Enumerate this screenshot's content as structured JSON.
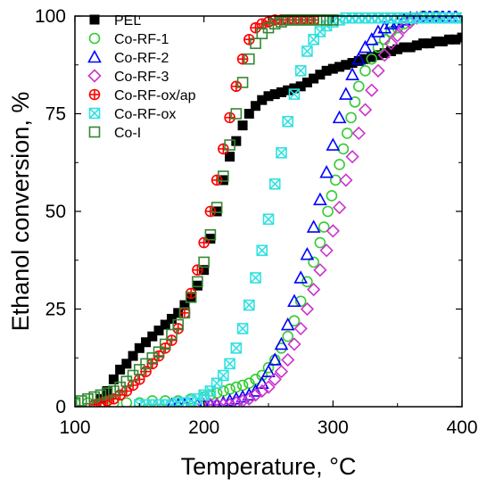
{
  "chart_data": {
    "type": "scatter",
    "xlabel": "Temperature, °C",
    "ylabel": "Ethanol conversion, %",
    "xlim": [
      100,
      400
    ],
    "ylim": [
      0,
      100
    ],
    "xticks": [
      100,
      200,
      300,
      400
    ],
    "yticks": [
      0,
      25,
      50,
      75,
      100
    ],
    "grid": false,
    "legend_position": "top-left",
    "series": [
      {
        "name": "PEL",
        "marker": "filled-square",
        "color": "#000000",
        "x": [
          120,
          125,
          130,
          135,
          140,
          145,
          150,
          155,
          160,
          165,
          170,
          175,
          180,
          185,
          190,
          195,
          200,
          205,
          210,
          215,
          220,
          225,
          230,
          235,
          240,
          245,
          250,
          255,
          260,
          265,
          270,
          275,
          280,
          285,
          290,
          295,
          300,
          305,
          310,
          315,
          320,
          325,
          330,
          335,
          340,
          345,
          350,
          355,
          360,
          365,
          370,
          375,
          380,
          385,
          390,
          395,
          400
        ],
        "y": [
          2,
          4,
          7,
          9.5,
          11,
          13,
          15,
          16.5,
          18,
          19.5,
          21,
          22.5,
          24,
          26,
          28,
          31,
          35,
          43,
          50,
          58,
          64,
          68,
          72,
          75,
          77,
          78.5,
          79.5,
          80,
          80.5,
          81,
          81.5,
          82,
          83,
          84,
          85,
          86,
          86.5,
          87,
          87.5,
          88,
          88.5,
          89,
          89.5,
          90,
          90.5,
          91,
          91.5,
          92,
          92,
          92.5,
          93,
          93,
          93.5,
          93.5,
          94,
          94,
          94.5
        ]
      },
      {
        "name": "Co-RF-1",
        "marker": "open-circle",
        "color": "#33cc33",
        "x": [
          100,
          110,
          120,
          130,
          140,
          150,
          160,
          170,
          180,
          190,
          200,
          205,
          210,
          215,
          220,
          225,
          230,
          235,
          240,
          245,
          250,
          255,
          260,
          265,
          270,
          275,
          280,
          285,
          290,
          293,
          296,
          299,
          302,
          305,
          308,
          311,
          314,
          317,
          320,
          325,
          330,
          335,
          340,
          345,
          350,
          355,
          360,
          365,
          370,
          380
        ],
        "y": [
          1,
          1,
          1,
          1,
          1,
          1,
          1.5,
          1.5,
          1.5,
          2,
          2.5,
          3,
          3.5,
          4,
          4.5,
          5,
          5.5,
          6,
          7,
          8,
          10,
          12,
          15,
          18,
          22,
          27,
          32,
          37,
          42,
          46,
          50,
          54,
          58,
          62,
          66,
          70,
          74,
          78,
          82,
          86,
          89,
          92,
          94,
          96,
          97,
          98,
          99,
          99.5,
          100,
          100
        ]
      },
      {
        "name": "Co-RF-2",
        "marker": "open-triangle",
        "color": "#0000ff",
        "x": [
          175,
          180,
          185,
          190,
          195,
          200,
          205,
          210,
          215,
          220,
          225,
          230,
          235,
          240,
          245,
          250,
          255,
          260,
          265,
          270,
          275,
          280,
          285,
          290,
          295,
          300,
          305,
          310,
          315,
          320,
          325,
          330,
          335,
          340,
          345,
          350,
          355,
          360,
          365,
          370,
          375,
          380,
          385,
          390,
          395
        ],
        "y": [
          0.5,
          0.5,
          0.5,
          0.5,
          0.5,
          0.5,
          0.5,
          0.5,
          1,
          1.5,
          2,
          2.5,
          3,
          4,
          6,
          9,
          12,
          16,
          21,
          27,
          33,
          39,
          46,
          53,
          60,
          67,
          74,
          80,
          85,
          89,
          92,
          94,
          96,
          97,
          98,
          98.5,
          99,
          99.5,
          99.5,
          100,
          100,
          100,
          100,
          100,
          100
        ]
      },
      {
        "name": "Co-RF-3",
        "marker": "open-diamond",
        "color": "#cc33cc",
        "x": [
          200,
          205,
          210,
          215,
          220,
          225,
          230,
          235,
          240,
          245,
          250,
          255,
          260,
          265,
          270,
          275,
          280,
          285,
          290,
          295,
          300,
          305,
          310,
          315,
          320,
          325,
          330,
          335,
          340,
          345,
          350,
          355,
          360,
          365
        ],
        "y": [
          0.5,
          0.5,
          0.5,
          0.5,
          0.5,
          1,
          1.5,
          2,
          3,
          4,
          5,
          7,
          9,
          12,
          16,
          20,
          25,
          30,
          35,
          40,
          45,
          51,
          58,
          64,
          70,
          76,
          81,
          86,
          90,
          93,
          95,
          97,
          98.5,
          99.5
        ]
      },
      {
        "name": "Co-RF-ox/ap",
        "marker": "crossed-circle",
        "color": "#ff0000",
        "x": [
          115,
          120,
          125,
          130,
          135,
          140,
          145,
          150,
          155,
          160,
          165,
          170,
          175,
          180,
          185,
          190,
          195,
          200,
          205,
          210,
          215,
          220,
          225,
          230,
          235,
          240,
          245,
          250,
          255,
          260,
          265,
          270,
          275,
          280,
          285
        ],
        "y": [
          0.5,
          1,
          1.5,
          2,
          3,
          4,
          5.5,
          7,
          9,
          11,
          13,
          15,
          17,
          20,
          24,
          29,
          35,
          42,
          50,
          58,
          66,
          74,
          82,
          89,
          94,
          97,
          98,
          98.5,
          99,
          99,
          99,
          99,
          99,
          99,
          99
        ]
      },
      {
        "name": "Co-RF-ox",
        "marker": "crossed-square",
        "color": "#33e0e0",
        "x": [
          150,
          155,
          160,
          165,
          170,
          175,
          180,
          185,
          190,
          195,
          200,
          205,
          210,
          215,
          220,
          225,
          230,
          235,
          240,
          245,
          250,
          255,
          260,
          265,
          270,
          275,
          280,
          285,
          290,
          295,
          300,
          305,
          310,
          315,
          320,
          325,
          330,
          335,
          340,
          345,
          350,
          355,
          360,
          365,
          370,
          375,
          380,
          385,
          390,
          395,
          400
        ],
        "y": [
          0.5,
          0.5,
          0.5,
          0.5,
          0.5,
          0.5,
          1,
          1,
          1.5,
          2,
          3,
          4,
          6,
          8,
          11,
          15,
          20,
          26,
          33,
          40,
          48,
          57,
          65,
          73,
          80,
          86,
          91,
          94,
          96,
          97.5,
          98.5,
          99,
          99.5,
          99.5,
          99.5,
          99.5,
          99.5,
          99.5,
          99.5,
          99.5,
          99.5,
          99.5,
          99.5,
          99.5,
          99.5,
          99.5,
          99.5,
          99.5,
          99.5,
          99.5,
          99.5
        ]
      },
      {
        "name": "Co-I",
        "marker": "open-square",
        "color": "#338833",
        "x": [
          100,
          105,
          110,
          115,
          120,
          125,
          130,
          135,
          140,
          145,
          150,
          155,
          160,
          165,
          170,
          175,
          180,
          185,
          190,
          195,
          200,
          205,
          210,
          215,
          220,
          225,
          230,
          235,
          240,
          245,
          250,
          255,
          260,
          265,
          270,
          275,
          280,
          285,
          290,
          295,
          300
        ],
        "y": [
          1,
          1.5,
          2,
          2.5,
          3,
          3.5,
          4,
          5,
          6.5,
          8,
          9.5,
          11,
          12.5,
          14,
          16,
          18.5,
          21,
          24,
          28,
          32,
          37,
          44,
          51,
          59,
          67,
          75,
          83,
          89,
          93,
          95.5,
          97,
          98,
          98.5,
          99,
          99,
          99,
          99,
          99,
          99,
          99,
          99
        ]
      }
    ]
  }
}
